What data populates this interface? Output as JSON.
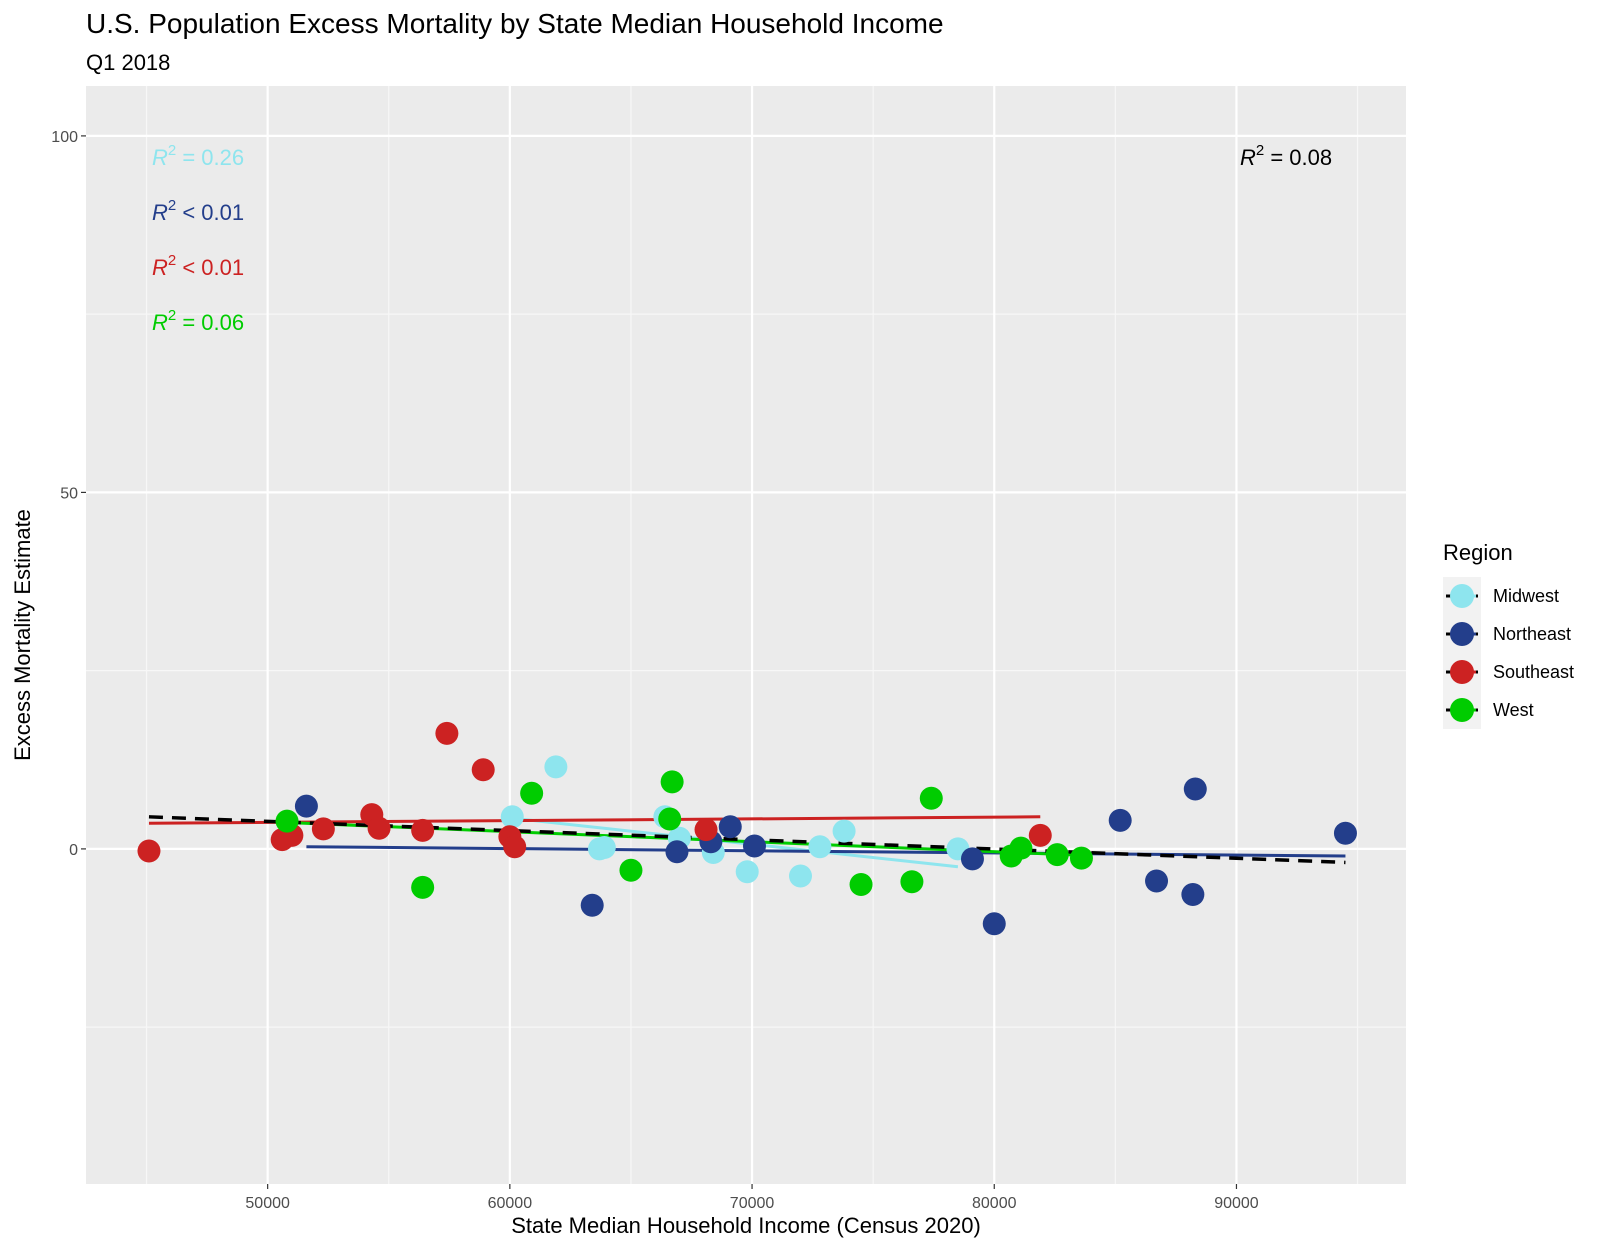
{
  "chart_data": {
    "type": "scatter",
    "title": "U.S. Population Excess Mortality by State Median Household Income",
    "subtitle": "Q1 2018",
    "xlabel": "State Median Household Income (Census 2020)",
    "ylabel": "Excess Mortality Estimate",
    "xlim": [
      42500,
      97000
    ],
    "ylim": [
      -47,
      107
    ],
    "xticks": [
      50000,
      60000,
      70000,
      80000,
      90000
    ],
    "xtick_labels": [
      "50000",
      "60000",
      "70000",
      "80000",
      "90000"
    ],
    "yticks": [
      0,
      50,
      100
    ],
    "ytick_labels": [
      "0",
      "50",
      "100"
    ],
    "grid": true,
    "legend": {
      "title": "Region",
      "placement": "right"
    },
    "series": [
      {
        "name": "Midwest",
        "color": "#8ee5ee",
        "points": [
          [
            60100,
            4.5
          ],
          [
            61900,
            11.5
          ],
          [
            63700,
            0
          ],
          [
            63900,
            0.2
          ],
          [
            66400,
            4.5
          ],
          [
            67000,
            1.5
          ],
          [
            68400,
            -0.5
          ],
          [
            69800,
            -3.2
          ],
          [
            72000,
            -3.8
          ],
          [
            72800,
            0.3
          ],
          [
            73800,
            2.5
          ],
          [
            78500,
            0
          ]
        ],
        "fit": [
          [
            60100,
            4.3
          ],
          [
            78500,
            -2.5
          ]
        ],
        "r2": "= 0.26"
      },
      {
        "name": "Northeast",
        "color": "#233e8b",
        "points": [
          [
            51600,
            6
          ],
          [
            63400,
            -7.9
          ],
          [
            66900,
            -0.4
          ],
          [
            68300,
            1
          ],
          [
            69100,
            3.1
          ],
          [
            70100,
            0.4
          ],
          [
            79100,
            -1.4
          ],
          [
            80000,
            -10.5
          ],
          [
            85200,
            4
          ],
          [
            86700,
            -4.5
          ],
          [
            88200,
            -6.4
          ],
          [
            88300,
            8.4
          ],
          [
            94500,
            2.2
          ]
        ],
        "fit": [
          [
            51600,
            0.3
          ],
          [
            94500,
            -1
          ]
        ],
        "r2": "< 0.01"
      },
      {
        "name": "Southeast",
        "color": "#cc2222",
        "points": [
          [
            45100,
            -0.3
          ],
          [
            50600,
            1.3
          ],
          [
            51000,
            1.9
          ],
          [
            52300,
            2.8
          ],
          [
            54300,
            4.8
          ],
          [
            54600,
            2.9
          ],
          [
            56400,
            2.6
          ],
          [
            57400,
            16.2
          ],
          [
            58900,
            11.1
          ],
          [
            60000,
            1.7
          ],
          [
            60200,
            0.3
          ],
          [
            68100,
            2.7
          ],
          [
            81900,
            1.9
          ]
        ],
        "fit": [
          [
            45100,
            3.6
          ],
          [
            81900,
            4.5
          ]
        ],
        "r2": "< 0.01"
      },
      {
        "name": "West",
        "color": "#00cc00",
        "points": [
          [
            50800,
            3.9
          ],
          [
            56400,
            -5.4
          ],
          [
            60900,
            7.8
          ],
          [
            65000,
            -3
          ],
          [
            66600,
            4.2
          ],
          [
            66700,
            9.4
          ],
          [
            74500,
            -5
          ],
          [
            76600,
            -4.6
          ],
          [
            77400,
            7.1
          ],
          [
            80700,
            -1
          ],
          [
            81100,
            0.1
          ],
          [
            82600,
            -0.8
          ],
          [
            83600,
            -1.3
          ]
        ],
        "fit": [
          [
            50800,
            3.7
          ],
          [
            83600,
            -0.9
          ]
        ],
        "r2": "= 0.06"
      }
    ],
    "overall_fit": {
      "color": "#000000",
      "line": [
        [
          45100,
          4.5
        ],
        [
          94500,
          -1.9
        ]
      ],
      "r2": "= 0.08"
    }
  }
}
